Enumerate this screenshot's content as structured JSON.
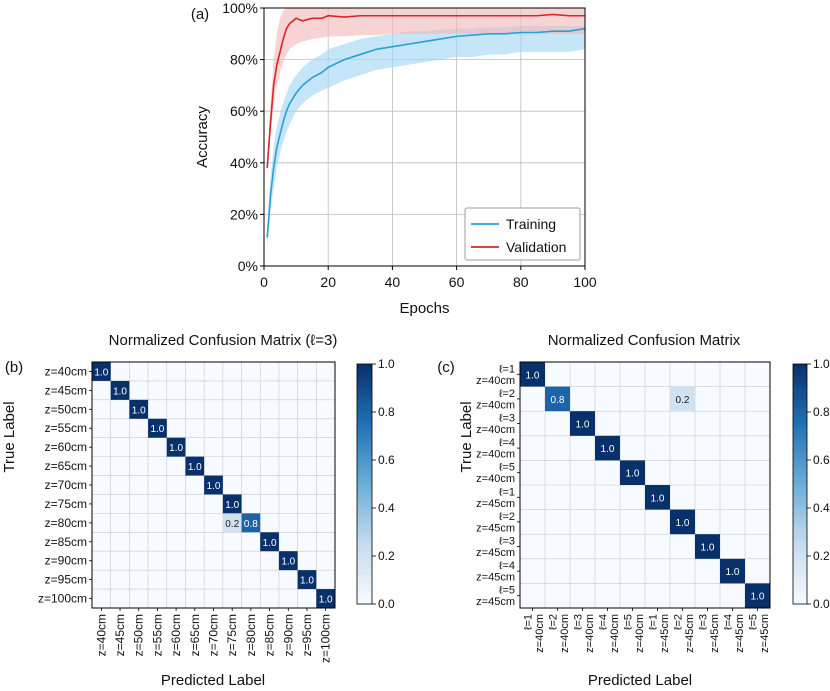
{
  "chart_data": [
    {
      "type": "line",
      "panel_label": "(a)",
      "title": "",
      "xlabel": "Epochs",
      "ylabel": "Accuracy",
      "xlim": [
        0,
        100
      ],
      "ylim": [
        0,
        100
      ],
      "x_ticks": [
        0,
        20,
        40,
        60,
        80,
        100
      ],
      "x_tick_labels": [
        "0",
        "20",
        "40",
        "60",
        "80",
        "100"
      ],
      "y_ticks": [
        0,
        20,
        40,
        60,
        80,
        100
      ],
      "y_tick_labels": [
        "0%",
        "20%",
        "40%",
        "60%",
        "80%",
        "100%"
      ],
      "grid": true,
      "legend_position": "bottom-right",
      "x": [
        1,
        2,
        3,
        4,
        5,
        6,
        7,
        8,
        10,
        12,
        15,
        18,
        20,
        25,
        30,
        35,
        40,
        45,
        50,
        55,
        60,
        65,
        70,
        75,
        80,
        85,
        90,
        95,
        100
      ],
      "series": [
        {
          "name": "Training",
          "color": "#2a9fd6",
          "band_color": "#9fd3f5",
          "values": [
            11,
            27,
            38,
            46,
            51,
            56,
            60,
            63,
            67,
            70,
            73,
            75,
            77,
            80,
            82,
            84,
            85,
            86,
            87,
            88,
            89,
            89.5,
            90,
            90,
            90.5,
            90.5,
            91,
            91,
            92
          ],
          "lower": [
            8,
            20,
            30,
            38,
            44,
            48,
            52,
            55,
            60,
            63,
            66,
            68,
            69,
            72,
            74,
            76,
            77,
            78,
            79,
            80,
            81,
            81,
            82,
            82,
            83,
            83,
            83,
            83,
            84
          ],
          "upper": [
            14,
            34,
            46,
            54,
            59,
            63,
            67,
            70,
            74,
            77,
            80,
            82,
            84,
            86,
            88,
            89,
            90,
            91,
            91,
            91.5,
            92,
            92,
            92.5,
            92.5,
            93,
            93,
            93,
            93,
            93
          ]
        },
        {
          "name": "Validation",
          "color": "#d62728",
          "band_color": "#f4b6b6",
          "values": [
            38,
            55,
            70,
            78,
            83,
            88,
            92,
            94,
            96,
            95,
            96,
            96,
            97,
            96.5,
            97,
            97,
            97,
            97,
            97,
            97,
            97,
            97,
            97,
            97,
            97,
            97,
            97.5,
            97,
            97
          ],
          "lower": [
            36,
            50,
            62,
            70,
            75,
            79,
            82,
            84,
            86,
            87,
            88,
            88.5,
            89,
            89,
            89.5,
            89.5,
            90,
            90,
            90,
            90,
            90,
            90,
            90,
            90,
            90,
            90,
            90,
            90,
            90
          ],
          "upper": [
            42,
            62,
            80,
            90,
            96,
            99,
            100,
            100,
            100,
            100,
            100,
            100,
            100,
            100,
            100,
            100,
            100,
            100,
            100,
            100,
            100,
            100,
            100,
            100,
            100,
            100,
            100,
            100,
            100
          ]
        }
      ]
    },
    {
      "type": "heatmap",
      "panel_label": "(b)",
      "title": "Normalized Confusion Matrix (ℓ=3)",
      "xlabel": "Predicted Label",
      "ylabel": "True Label",
      "row_labels": [
        "z=40cm",
        "z=45cm",
        "z=50cm",
        "z=55cm",
        "z=60cm",
        "z=65cm",
        "z=70cm",
        "z=75cm",
        "z=80cm",
        "z=85cm",
        "z=90cm",
        "z=95cm",
        "z=100cm"
      ],
      "col_labels": [
        "z=40cm",
        "z=45cm",
        "z=50cm",
        "z=55cm",
        "z=60cm",
        "z=65cm",
        "z=70cm",
        "z=75cm",
        "z=80cm",
        "z=85cm",
        "z=90cm",
        "z=95cm",
        "z=100cm"
      ],
      "cells": [
        {
          "row": 0,
          "col": 0,
          "value": 1.0,
          "label": "1.0"
        },
        {
          "row": 1,
          "col": 1,
          "value": 1.0,
          "label": "1.0"
        },
        {
          "row": 2,
          "col": 2,
          "value": 1.0,
          "label": "1.0"
        },
        {
          "row": 3,
          "col": 3,
          "value": 1.0,
          "label": "1.0"
        },
        {
          "row": 4,
          "col": 4,
          "value": 1.0,
          "label": "1.0"
        },
        {
          "row": 5,
          "col": 5,
          "value": 1.0,
          "label": "1.0"
        },
        {
          "row": 6,
          "col": 6,
          "value": 1.0,
          "label": "1.0"
        },
        {
          "row": 7,
          "col": 7,
          "value": 1.0,
          "label": "1.0"
        },
        {
          "row": 8,
          "col": 7,
          "value": 0.2,
          "label": "0.2"
        },
        {
          "row": 8,
          "col": 8,
          "value": 0.8,
          "label": "0.8"
        },
        {
          "row": 9,
          "col": 9,
          "value": 1.0,
          "label": "1.0"
        },
        {
          "row": 10,
          "col": 10,
          "value": 1.0,
          "label": "1.0"
        },
        {
          "row": 11,
          "col": 11,
          "value": 1.0,
          "label": "1.0"
        },
        {
          "row": 12,
          "col": 12,
          "value": 1.0,
          "label": "1.0"
        }
      ],
      "colorbar": {
        "range": [
          0.0,
          1.0
        ],
        "ticks": [
          0.0,
          0.2,
          0.4,
          0.6,
          0.8,
          1.0
        ],
        "tick_labels": [
          "0.0",
          "0.2",
          "0.4",
          "0.6",
          "0.8",
          "1.0"
        ]
      }
    },
    {
      "type": "heatmap",
      "panel_label": "(c)",
      "title": "Normalized Confusion Matrix",
      "xlabel": "Predicted Label",
      "ylabel": "True Label",
      "row_labels": [
        [
          "ℓ=1",
          "z=40cm"
        ],
        [
          "ℓ=2",
          "z=40cm"
        ],
        [
          "ℓ=3",
          "z=40cm"
        ],
        [
          "ℓ=4",
          "z=40cm"
        ],
        [
          "ℓ=5",
          "z=40cm"
        ],
        [
          "ℓ=1",
          "z=45cm"
        ],
        [
          "ℓ=2",
          "z=45cm"
        ],
        [
          "ℓ=3",
          "z=45cm"
        ],
        [
          "ℓ=4",
          "z=45cm"
        ],
        [
          "ℓ=5",
          "z=45cm"
        ]
      ],
      "col_labels": [
        [
          "ℓ=1",
          "z=40cm"
        ],
        [
          "ℓ=2",
          "z=40cm"
        ],
        [
          "ℓ=3",
          "z=40cm"
        ],
        [
          "ℓ=4",
          "z=40cm"
        ],
        [
          "ℓ=5",
          "z=40cm"
        ],
        [
          "ℓ=1",
          "z=45cm"
        ],
        [
          "ℓ=2",
          "z=45cm"
        ],
        [
          "ℓ=3",
          "z=45cm"
        ],
        [
          "ℓ=4",
          "z=45cm"
        ],
        [
          "ℓ=5",
          "z=45cm"
        ]
      ],
      "cells": [
        {
          "row": 0,
          "col": 0,
          "value": 1.0,
          "label": "1.0"
        },
        {
          "row": 1,
          "col": 1,
          "value": 0.8,
          "label": "0.8"
        },
        {
          "row": 1,
          "col": 6,
          "value": 0.2,
          "label": "0.2"
        },
        {
          "row": 2,
          "col": 2,
          "value": 1.0,
          "label": "1.0"
        },
        {
          "row": 3,
          "col": 3,
          "value": 1.0,
          "label": "1.0"
        },
        {
          "row": 4,
          "col": 4,
          "value": 1.0,
          "label": "1.0"
        },
        {
          "row": 5,
          "col": 5,
          "value": 1.0,
          "label": "1.0"
        },
        {
          "row": 6,
          "col": 6,
          "value": 1.0,
          "label": "1.0"
        },
        {
          "row": 7,
          "col": 7,
          "value": 1.0,
          "label": "1.0"
        },
        {
          "row": 8,
          "col": 8,
          "value": 1.0,
          "label": "1.0"
        },
        {
          "row": 9,
          "col": 9,
          "value": 1.0,
          "label": "1.0"
        }
      ],
      "colorbar": {
        "range": [
          0.0,
          1.0
        ],
        "ticks": [
          0.0,
          0.2,
          0.4,
          0.6,
          0.8,
          1.0
        ],
        "tick_labels": [
          "0.0",
          "0.2",
          "0.4",
          "0.6",
          "0.8",
          "1.0"
        ]
      }
    }
  ]
}
